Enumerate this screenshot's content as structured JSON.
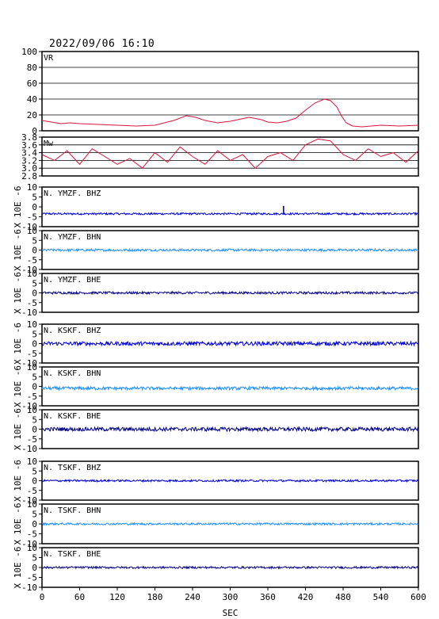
{
  "timestamp": "2022/09/06 16:10",
  "x_axis": {
    "label": "SEC",
    "ticks": [
      "0",
      "60",
      "120",
      "180",
      "240",
      "300",
      "360",
      "420",
      "480",
      "540",
      "600"
    ],
    "range": [
      0,
      600
    ]
  },
  "colors": {
    "vr_line": "#dc143c",
    "mw_line": "#dc143c",
    "bhz": "#0000cd",
    "bhn": "#1e90ff",
    "bhe": "#000080",
    "frame": "#000000",
    "grid": "#000000"
  },
  "chart_data": [
    {
      "type": "line",
      "id": "vr",
      "panel_label": "VR",
      "ylim": [
        0,
        100
      ],
      "yticks": [
        "0",
        "20",
        "40",
        "60",
        "80",
        "100"
      ],
      "grid": true,
      "x": [
        0,
        15,
        30,
        45,
        60,
        90,
        120,
        150,
        180,
        210,
        230,
        245,
        260,
        280,
        300,
        330,
        350,
        360,
        375,
        390,
        405,
        420,
        435,
        450,
        460,
        470,
        478,
        485,
        495,
        510,
        540,
        570,
        600
      ],
      "y": [
        13,
        11,
        9,
        10,
        9,
        8,
        7,
        6,
        7,
        13,
        19,
        17,
        13,
        10,
        12,
        17,
        14,
        11,
        10,
        12,
        16,
        26,
        35,
        40,
        38,
        30,
        18,
        10,
        6,
        5,
        7,
        6,
        7
      ]
    },
    {
      "type": "line",
      "id": "mw",
      "panel_label": "Mw",
      "ylim": [
        2.8,
        3.8
      ],
      "yticks": [
        "2.8",
        "3.0",
        "3.2",
        "3.4",
        "3.6",
        "3.8"
      ],
      "grid": true,
      "x": [
        0,
        20,
        40,
        60,
        80,
        100,
        120,
        140,
        160,
        180,
        200,
        220,
        240,
        260,
        280,
        300,
        320,
        340,
        360,
        380,
        400,
        420,
        440,
        460,
        480,
        500,
        520,
        540,
        560,
        580,
        600
      ],
      "y": [
        3.35,
        3.2,
        3.45,
        3.1,
        3.5,
        3.3,
        3.1,
        3.25,
        3.0,
        3.4,
        3.15,
        3.55,
        3.3,
        3.1,
        3.45,
        3.2,
        3.35,
        3.0,
        3.3,
        3.4,
        3.2,
        3.6,
        3.75,
        3.7,
        3.35,
        3.2,
        3.5,
        3.3,
        3.4,
        3.15,
        3.45
      ]
    },
    {
      "type": "line",
      "id": "ymzf-bhz",
      "panel_label": "N. YMZF. BHZ",
      "ylabel": "X 10E -6",
      "ylim": [
        -10,
        10
      ],
      "yticks": [
        "-10",
        "-5",
        "0",
        "5",
        "10"
      ],
      "baseline": -3.5,
      "noise_amplitude": 0.5,
      "spikes": [
        {
          "x": 385,
          "y": 0.5
        }
      ]
    },
    {
      "type": "line",
      "id": "ymzf-bhn",
      "panel_label": "N. YMZF. BHN",
      "ylabel": "X 10E -6",
      "ylim": [
        -10,
        10
      ],
      "yticks": [
        "-10",
        "-5",
        "0",
        "5",
        "10"
      ],
      "baseline": 0,
      "noise_amplitude": 0.6,
      "spikes": []
    },
    {
      "type": "line",
      "id": "ymzf-bhe",
      "panel_label": "N. YMZF. BHE",
      "ylabel": "X 10E -6",
      "ylim": [
        -10,
        10
      ],
      "yticks": [
        "-10",
        "-5",
        "0",
        "5",
        "10"
      ],
      "baseline": 0,
      "noise_amplitude": 0.6,
      "spikes": []
    },
    {
      "type": "line",
      "id": "kskf-bhz",
      "panel_label": "N. KSKF. BHZ",
      "ylabel": "X 10E -6",
      "ylim": [
        -10,
        10
      ],
      "yticks": [
        "-10",
        "-5",
        "0",
        "5",
        "10"
      ],
      "baseline": 0,
      "noise_amplitude": 1.0,
      "spikes": []
    },
    {
      "type": "line",
      "id": "kskf-bhn",
      "panel_label": "N. KSKF. BHN",
      "ylabel": "X 10E -6",
      "ylim": [
        -10,
        10
      ],
      "yticks": [
        "-10",
        "-5",
        "0",
        "5",
        "10"
      ],
      "baseline": -1,
      "noise_amplitude": 0.8,
      "spikes": []
    },
    {
      "type": "line",
      "id": "kskf-bhe",
      "panel_label": "N. KSKF. BHE",
      "ylabel": "X 10E -6",
      "ylim": [
        -10,
        10
      ],
      "yticks": [
        "-10",
        "-5",
        "0",
        "5",
        "10"
      ],
      "baseline": 0,
      "noise_amplitude": 1.0,
      "spikes": []
    },
    {
      "type": "line",
      "id": "tskf-bhz",
      "panel_label": "N. TSKF. BHZ",
      "ylabel": "X 10E -6",
      "ylim": [
        -10,
        10
      ],
      "yticks": [
        "-10",
        "-5",
        "0",
        "5",
        "10"
      ],
      "baseline": 0,
      "noise_amplitude": 0.5,
      "spikes": []
    },
    {
      "type": "line",
      "id": "tskf-bhn",
      "panel_label": "N. TSKF. BHN",
      "ylabel": "X 10E -6",
      "ylim": [
        -10,
        10
      ],
      "yticks": [
        "-10",
        "-5",
        "0",
        "5",
        "10"
      ],
      "baseline": 0,
      "noise_amplitude": 0.5,
      "spikes": []
    },
    {
      "type": "line",
      "id": "tskf-bhe",
      "panel_label": "N. TSKF. BHE",
      "ylabel": "X 10E -6",
      "ylim": [
        -10,
        10
      ],
      "yticks": [
        "-10",
        "-5",
        "0",
        "5",
        "10"
      ],
      "baseline": 0,
      "noise_amplitude": 0.5,
      "spikes": []
    }
  ]
}
